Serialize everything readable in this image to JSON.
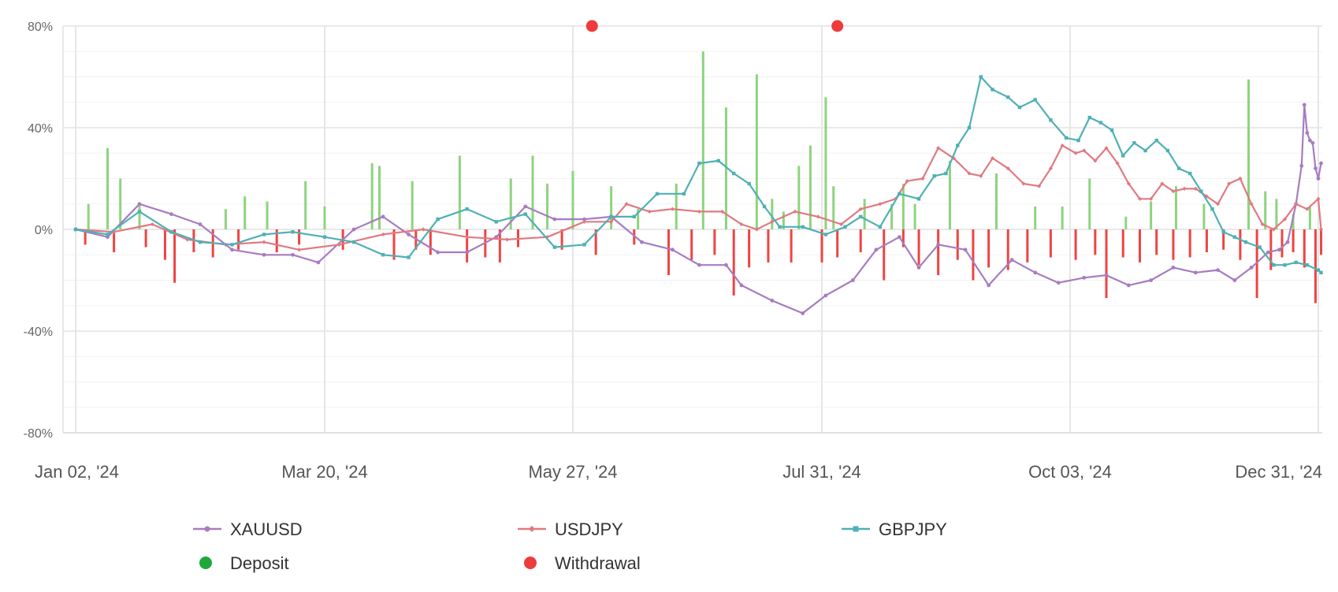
{
  "chart_data": {
    "type": "line",
    "title": "",
    "xlabel": "",
    "ylabel": "",
    "ylim": [
      -80,
      80
    ],
    "y_ticks": [
      80,
      40,
      0,
      -40,
      -80
    ],
    "y_tick_labels": [
      "80%",
      "40%",
      "0%",
      "-40%",
      "-80%"
    ],
    "x_tick_labels": [
      "Jan 02, '24",
      "Mar 20, '24",
      "May 27, '24",
      "Jul 31, '24",
      "Oct 03, '24",
      "Dec 31, '24"
    ],
    "x_tick_dates": [
      "2024-01-02",
      "2024-03-20",
      "2024-05-27",
      "2024-07-31",
      "2024-10-03",
      "2024-12-31"
    ],
    "grid": true,
    "legend_position": "bottom",
    "colors": {
      "XAUUSD": "#a77cc0",
      "USDJPY": "#e07a80",
      "GBPJPY": "#4fb0b4",
      "Deposit": "#1fa83a",
      "Withdrawal": "#ee3b3b",
      "deposit_bar": "#8ed37f",
      "withdrawal_bar": "#ee4444"
    },
    "series": [
      {
        "name": "XAUUSD",
        "marker": "circle",
        "points": [
          [
            "2024-01-02",
            0
          ],
          [
            "2024-01-12",
            -3
          ],
          [
            "2024-01-22",
            10
          ],
          [
            "2024-02-01",
            6
          ],
          [
            "2024-02-10",
            2
          ],
          [
            "2024-02-20",
            -8
          ],
          [
            "2024-03-01",
            -10
          ],
          [
            "2024-03-10",
            -10
          ],
          [
            "2024-03-18",
            -13
          ],
          [
            "2024-03-28",
            0
          ],
          [
            "2024-04-05",
            5
          ],
          [
            "2024-04-12",
            -2
          ],
          [
            "2024-04-20",
            -9
          ],
          [
            "2024-04-28",
            -9
          ],
          [
            "2024-05-06",
            -3
          ],
          [
            "2024-05-14",
            9
          ],
          [
            "2024-05-22",
            4
          ],
          [
            "2024-05-30",
            4
          ],
          [
            "2024-06-06",
            5
          ],
          [
            "2024-06-14",
            -5
          ],
          [
            "2024-06-22",
            -8
          ],
          [
            "2024-06-29",
            -14
          ],
          [
            "2024-07-06",
            -14
          ],
          [
            "2024-07-10",
            -22
          ],
          [
            "2024-07-18",
            -28
          ],
          [
            "2024-07-26",
            -33
          ],
          [
            "2024-08-01",
            -26
          ],
          [
            "2024-08-08",
            -20
          ],
          [
            "2024-08-14",
            -8
          ],
          [
            "2024-08-20",
            -3
          ],
          [
            "2024-08-25",
            -15
          ],
          [
            "2024-08-30",
            -6
          ],
          [
            "2024-09-06",
            -8
          ],
          [
            "2024-09-12",
            -22
          ],
          [
            "2024-09-18",
            -12
          ],
          [
            "2024-09-24",
            -17
          ],
          [
            "2024-09-30",
            -21
          ],
          [
            "2024-10-08",
            -19
          ],
          [
            "2024-10-16",
            -18
          ],
          [
            "2024-10-24",
            -22
          ],
          [
            "2024-11-01",
            -20
          ],
          [
            "2024-11-09",
            -15
          ],
          [
            "2024-11-17",
            -17
          ],
          [
            "2024-11-25",
            -16
          ],
          [
            "2024-12-01",
            -20
          ],
          [
            "2024-12-07",
            -15
          ],
          [
            "2024-12-13",
            -9
          ],
          [
            "2024-12-17",
            -8
          ],
          [
            "2024-12-20",
            -5
          ],
          [
            "2024-12-23",
            10
          ],
          [
            "2024-12-25",
            25
          ],
          [
            "2024-12-26",
            49
          ],
          [
            "2024-12-27",
            38
          ],
          [
            "2024-12-28",
            35
          ],
          [
            "2024-12-29",
            34
          ],
          [
            "2024-12-30",
            24
          ],
          [
            "2024-12-31",
            20
          ],
          [
            "2025-01-01",
            26
          ]
        ]
      },
      {
        "name": "USDJPY",
        "marker": "diamond",
        "points": [
          [
            "2024-01-02",
            0
          ],
          [
            "2024-01-14",
            -1
          ],
          [
            "2024-01-26",
            2
          ],
          [
            "2024-02-06",
            -4
          ],
          [
            "2024-02-18",
            -6
          ],
          [
            "2024-03-01",
            -5
          ],
          [
            "2024-03-12",
            -8
          ],
          [
            "2024-03-24",
            -6
          ],
          [
            "2024-04-05",
            -2
          ],
          [
            "2024-04-16",
            0
          ],
          [
            "2024-04-28",
            -3
          ],
          [
            "2024-05-09",
            -4
          ],
          [
            "2024-05-20",
            -3
          ],
          [
            "2024-05-30",
            3
          ],
          [
            "2024-06-06",
            3
          ],
          [
            "2024-06-10",
            10
          ],
          [
            "2024-06-16",
            7
          ],
          [
            "2024-06-22",
            8
          ],
          [
            "2024-06-29",
            7
          ],
          [
            "2024-07-05",
            7
          ],
          [
            "2024-07-10",
            2
          ],
          [
            "2024-07-14",
            0
          ],
          [
            "2024-07-18",
            3
          ],
          [
            "2024-07-24",
            7
          ],
          [
            "2024-07-30",
            5
          ],
          [
            "2024-08-05",
            2
          ],
          [
            "2024-08-10",
            8
          ],
          [
            "2024-08-15",
            10
          ],
          [
            "2024-08-19",
            12
          ],
          [
            "2024-08-22",
            19
          ],
          [
            "2024-08-26",
            20
          ],
          [
            "2024-08-30",
            32
          ],
          [
            "2024-09-03",
            28
          ],
          [
            "2024-09-07",
            22
          ],
          [
            "2024-09-10",
            21
          ],
          [
            "2024-09-13",
            28
          ],
          [
            "2024-09-17",
            24
          ],
          [
            "2024-09-21",
            18
          ],
          [
            "2024-09-25",
            17
          ],
          [
            "2024-09-28",
            24
          ],
          [
            "2024-10-01",
            33
          ],
          [
            "2024-10-05",
            30
          ],
          [
            "2024-10-08",
            31
          ],
          [
            "2024-10-12",
            27
          ],
          [
            "2024-10-16",
            32
          ],
          [
            "2024-10-20",
            26
          ],
          [
            "2024-10-24",
            18
          ],
          [
            "2024-10-28",
            12
          ],
          [
            "2024-11-01",
            12
          ],
          [
            "2024-11-05",
            18
          ],
          [
            "2024-11-09",
            15
          ],
          [
            "2024-11-13",
            16
          ],
          [
            "2024-11-17",
            16
          ],
          [
            "2024-11-21",
            13
          ],
          [
            "2024-11-25",
            10
          ],
          [
            "2024-11-29",
            18
          ],
          [
            "2024-12-03",
            20
          ],
          [
            "2024-12-07",
            10
          ],
          [
            "2024-12-11",
            2
          ],
          [
            "2024-12-15",
            0
          ],
          [
            "2024-12-19",
            4
          ],
          [
            "2024-12-23",
            10
          ],
          [
            "2024-12-27",
            8
          ],
          [
            "2024-12-31",
            12
          ],
          [
            "2025-01-01",
            0
          ]
        ]
      },
      {
        "name": "GBPJPY",
        "marker": "square",
        "points": [
          [
            "2024-01-02",
            0
          ],
          [
            "2024-01-12",
            -2
          ],
          [
            "2024-01-22",
            7
          ],
          [
            "2024-02-01",
            -1
          ],
          [
            "2024-02-10",
            -5
          ],
          [
            "2024-02-20",
            -6
          ],
          [
            "2024-03-01",
            -2
          ],
          [
            "2024-03-10",
            -1
          ],
          [
            "2024-03-20",
            -3
          ],
          [
            "2024-03-28",
            -5
          ],
          [
            "2024-04-05",
            -10
          ],
          [
            "2024-04-12",
            -11
          ],
          [
            "2024-04-20",
            4
          ],
          [
            "2024-04-28",
            8
          ],
          [
            "2024-05-06",
            3
          ],
          [
            "2024-05-14",
            6
          ],
          [
            "2024-05-22",
            -7
          ],
          [
            "2024-05-30",
            -6
          ],
          [
            "2024-06-06",
            5
          ],
          [
            "2024-06-12",
            5
          ],
          [
            "2024-06-18",
            14
          ],
          [
            "2024-06-25",
            14
          ],
          [
            "2024-06-29",
            26
          ],
          [
            "2024-07-04",
            27
          ],
          [
            "2024-07-08",
            22
          ],
          [
            "2024-07-12",
            18
          ],
          [
            "2024-07-16",
            9
          ],
          [
            "2024-07-20",
            1
          ],
          [
            "2024-07-26",
            1
          ],
          [
            "2024-08-01",
            -2
          ],
          [
            "2024-08-06",
            1
          ],
          [
            "2024-08-10",
            5
          ],
          [
            "2024-08-15",
            1
          ],
          [
            "2024-08-20",
            14
          ],
          [
            "2024-08-25",
            12
          ],
          [
            "2024-08-29",
            21
          ],
          [
            "2024-09-01",
            22
          ],
          [
            "2024-09-04",
            33
          ],
          [
            "2024-09-07",
            40
          ],
          [
            "2024-09-10",
            60
          ],
          [
            "2024-09-13",
            55
          ],
          [
            "2024-09-17",
            52
          ],
          [
            "2024-09-20",
            48
          ],
          [
            "2024-09-24",
            51
          ],
          [
            "2024-09-28",
            43
          ],
          [
            "2024-10-02",
            36
          ],
          [
            "2024-10-06",
            35
          ],
          [
            "2024-10-10",
            44
          ],
          [
            "2024-10-14",
            42
          ],
          [
            "2024-10-18",
            39
          ],
          [
            "2024-10-22",
            29
          ],
          [
            "2024-10-26",
            34
          ],
          [
            "2024-10-30",
            31
          ],
          [
            "2024-11-03",
            35
          ],
          [
            "2024-11-07",
            31
          ],
          [
            "2024-11-11",
            24
          ],
          [
            "2024-11-15",
            22
          ],
          [
            "2024-11-19",
            15
          ],
          [
            "2024-11-23",
            8
          ],
          [
            "2024-11-27",
            -1
          ],
          [
            "2024-12-01",
            -3
          ],
          [
            "2024-12-05",
            -5
          ],
          [
            "2024-12-10",
            -7
          ],
          [
            "2024-12-15",
            -14
          ],
          [
            "2024-12-19",
            -14
          ],
          [
            "2024-12-23",
            -13
          ],
          [
            "2024-12-27",
            -14
          ],
          [
            "2024-12-31",
            -16
          ],
          [
            "2025-01-01",
            -17
          ]
        ]
      }
    ],
    "deposit_bars": [
      [
        "2024-01-06",
        10
      ],
      [
        "2024-01-12",
        32
      ],
      [
        "2024-01-16",
        20
      ],
      [
        "2024-01-22",
        10
      ],
      [
        "2024-02-18",
        8
      ],
      [
        "2024-02-24",
        13
      ],
      [
        "2024-03-02",
        11
      ],
      [
        "2024-03-14",
        19
      ],
      [
        "2024-03-20",
        9
      ],
      [
        "2024-04-02",
        26
      ],
      [
        "2024-04-04",
        25
      ],
      [
        "2024-04-13",
        19
      ],
      [
        "2024-04-26",
        29
      ],
      [
        "2024-05-10",
        20
      ],
      [
        "2024-05-16",
        29
      ],
      [
        "2024-05-20",
        18
      ],
      [
        "2024-05-27",
        23
      ],
      [
        "2024-06-06",
        17
      ],
      [
        "2024-06-13",
        8
      ],
      [
        "2024-06-23",
        18
      ],
      [
        "2024-06-30",
        70
      ],
      [
        "2024-07-06",
        48
      ],
      [
        "2024-07-14",
        61
      ],
      [
        "2024-07-18",
        12
      ],
      [
        "2024-07-21",
        7
      ],
      [
        "2024-07-25",
        25
      ],
      [
        "2024-07-28",
        33
      ],
      [
        "2024-08-01",
        52
      ],
      [
        "2024-08-03",
        17
      ],
      [
        "2024-08-11",
        12
      ],
      [
        "2024-08-18",
        10
      ],
      [
        "2024-08-21",
        18
      ],
      [
        "2024-08-24",
        10
      ],
      [
        "2024-09-02",
        27
      ],
      [
        "2024-09-14",
        22
      ],
      [
        "2024-09-24",
        9
      ],
      [
        "2024-10-01",
        9
      ],
      [
        "2024-10-10",
        20
      ],
      [
        "2024-10-23",
        5
      ],
      [
        "2024-11-01",
        11
      ],
      [
        "2024-11-10",
        17
      ],
      [
        "2024-11-20",
        10
      ],
      [
        "2024-12-06",
        59
      ],
      [
        "2024-12-12",
        15
      ],
      [
        "2024-12-16",
        12
      ],
      [
        "2024-12-22",
        6
      ],
      [
        "2024-12-28",
        9
      ]
    ],
    "withdrawal_bars": [
      [
        "2024-01-05",
        -6
      ],
      [
        "2024-01-14",
        -9
      ],
      [
        "2024-01-24",
        -7
      ],
      [
        "2024-01-30",
        -12
      ],
      [
        "2024-02-02",
        -21
      ],
      [
        "2024-02-08",
        -9
      ],
      [
        "2024-02-14",
        -11
      ],
      [
        "2024-02-22",
        -8
      ],
      [
        "2024-03-05",
        -9
      ],
      [
        "2024-03-12",
        -6
      ],
      [
        "2024-03-25",
        -8
      ],
      [
        "2024-04-08",
        -12
      ],
      [
        "2024-04-14",
        -8
      ],
      [
        "2024-04-18",
        -10
      ],
      [
        "2024-04-28",
        -13
      ],
      [
        "2024-05-03",
        -11
      ],
      [
        "2024-05-07",
        -13
      ],
      [
        "2024-05-12",
        -7
      ],
      [
        "2024-05-24",
        -8
      ],
      [
        "2024-06-02",
        -10
      ],
      [
        "2024-06-12",
        -6
      ],
      [
        "2024-06-21",
        -18
      ],
      [
        "2024-06-27",
        -12
      ],
      [
        "2024-07-03",
        -10
      ],
      [
        "2024-07-08",
        -26
      ],
      [
        "2024-07-12",
        -15
      ],
      [
        "2024-07-17",
        -13
      ],
      [
        "2024-07-23",
        -13
      ],
      [
        "2024-07-31",
        -13
      ],
      [
        "2024-08-04",
        -11
      ],
      [
        "2024-08-10",
        -9
      ],
      [
        "2024-08-16",
        -20
      ],
      [
        "2024-08-21",
        -7
      ],
      [
        "2024-08-25",
        -14
      ],
      [
        "2024-08-30",
        -18
      ],
      [
        "2024-09-04",
        -12
      ],
      [
        "2024-09-08",
        -20
      ],
      [
        "2024-09-12",
        -15
      ],
      [
        "2024-09-17",
        -16
      ],
      [
        "2024-09-22",
        -13
      ],
      [
        "2024-09-28",
        -11
      ],
      [
        "2024-10-05",
        -12
      ],
      [
        "2024-10-12",
        -10
      ],
      [
        "2024-10-16",
        -27
      ],
      [
        "2024-10-22",
        -11
      ],
      [
        "2024-10-28",
        -13
      ],
      [
        "2024-11-03",
        -10
      ],
      [
        "2024-11-09",
        -12
      ],
      [
        "2024-11-15",
        -11
      ],
      [
        "2024-11-21",
        -9
      ],
      [
        "2024-11-27",
        -8
      ],
      [
        "2024-12-03",
        -12
      ],
      [
        "2024-12-09",
        -27
      ],
      [
        "2024-12-14",
        -16
      ],
      [
        "2024-12-18",
        -11
      ],
      [
        "2024-12-22",
        -9
      ],
      [
        "2024-12-26",
        -15
      ],
      [
        "2024-12-30",
        -29
      ],
      [
        "2025-01-01",
        -10
      ]
    ],
    "withdrawal_markers": [
      "2024-06-01",
      "2024-08-04"
    ],
    "legend": [
      {
        "name": "XAUUSD",
        "symbol": "line-circle"
      },
      {
        "name": "USDJPY",
        "symbol": "line-diamond"
      },
      {
        "name": "GBPJPY",
        "symbol": "line-square"
      },
      {
        "name": "Deposit",
        "symbol": "dot"
      },
      {
        "name": "Withdrawal",
        "symbol": "dot"
      }
    ]
  }
}
